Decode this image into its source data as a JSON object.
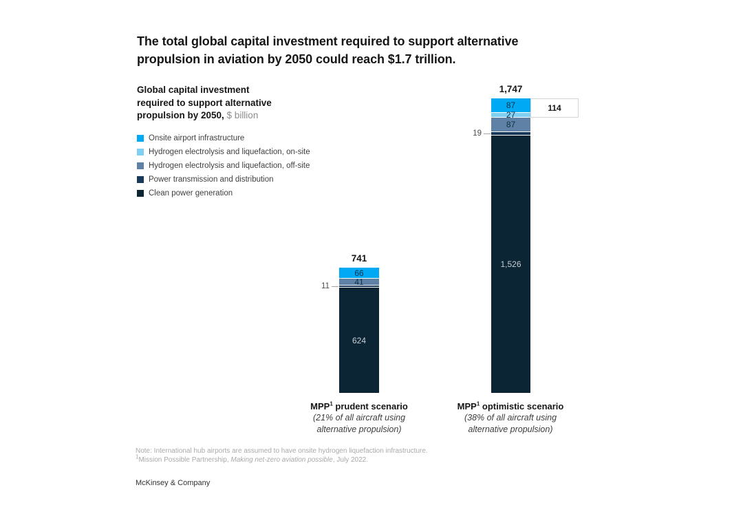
{
  "title": {
    "line1": "The total global capital investment required to support alternative",
    "line2": "propulsion in aviation by 2050 could reach $1.7 trillion."
  },
  "subtitle": {
    "line1": "Global capital investment",
    "line2": "required to support alternative",
    "line3_bold": "propulsion by 2050,",
    "unit": "$ billion"
  },
  "legend": [
    {
      "label": "Onsite airport infrastructure",
      "color": "#00A9F4"
    },
    {
      "label": "Hydrogen electrolysis and liquefaction, on-site",
      "color": "#7FD0F2"
    },
    {
      "label": "Hydrogen electrolysis and liquefaction, off-site",
      "color": "#5E81A5"
    },
    {
      "label": "Power transmission and distribution",
      "color": "#19395B"
    },
    {
      "label": "Clean power generation",
      "color": "#0C2535"
    }
  ],
  "chart_data": {
    "type": "bar",
    "stacked": true,
    "unit": "$ billion",
    "ylim": [
      0,
      1747
    ],
    "grid": false,
    "legend_position": "top-left",
    "categories": [
      "MPP prudent scenario",
      "MPP optimistic scenario"
    ],
    "categories_meta": [
      {
        "name": "MPP",
        "sup": "1",
        "name_rest": " prudent scenario",
        "subtitle": "(21% of all aircraft using alternative propulsion)"
      },
      {
        "name": "MPP",
        "sup": "1",
        "name_rest": " optimistic scenario",
        "subtitle": "(38% of all aircraft using alternative propulsion)"
      }
    ],
    "totals": [
      "741",
      "1,747"
    ],
    "series": [
      {
        "name": "Onsite airport infrastructure",
        "color": "#00A9F4",
        "values": [
          66,
          87
        ],
        "labels": [
          "66",
          "87"
        ],
        "label_placement": "inside",
        "label_tone": "dark"
      },
      {
        "name": "Hydrogen electrolysis and liquefaction, on-site",
        "color": "#7FD0F2",
        "values": [
          null,
          27
        ],
        "labels": [
          "",
          "27"
        ],
        "label_placement": "inside",
        "label_tone": "dark"
      },
      {
        "name": "Hydrogen electrolysis and liquefaction, off-site",
        "color": "#5E81A5",
        "values": [
          41,
          87
        ],
        "labels": [
          "41",
          "87"
        ],
        "label_placement": "inside",
        "label_tone": "dark"
      },
      {
        "name": "Power transmission and distribution",
        "color": "#19395B",
        "values": [
          11,
          19
        ],
        "labels": [
          "11",
          "19"
        ],
        "label_placement": "outside",
        "label_tone": "dark"
      },
      {
        "name": "Clean power generation",
        "color": "#0C2535",
        "values": [
          624,
          1526
        ],
        "labels": [
          "624",
          "1,526"
        ],
        "label_placement": "inside",
        "label_tone": "light"
      }
    ],
    "callout": {
      "bar_index": 1,
      "label": "114",
      "span_series": [
        0,
        1
      ]
    }
  },
  "notes": {
    "line1": "Note: International hub airports are assumed to have onsite hydrogen liquefaction infrastructure.",
    "line2_sup": "1",
    "line2_pre": "Mission Possible Partnership, ",
    "line2_italic": "Making net-zero aviation possible",
    "line2_post": ", July 2022."
  },
  "brand": "McKinsey & Company"
}
